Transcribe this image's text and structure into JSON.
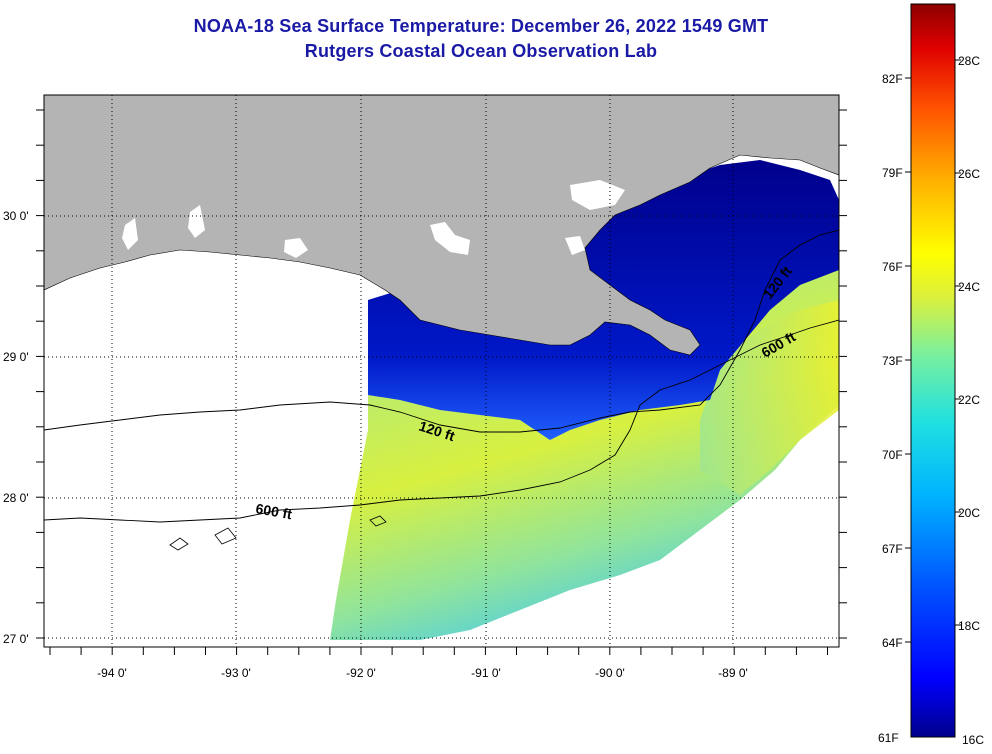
{
  "title": {
    "line1": "NOAA-18 Sea Surface Temperature:  December 26, 2022 1549 GMT",
    "line2": "Rutgers Coastal Ocean Observation Lab"
  },
  "map": {
    "lat_labels": [
      "30 0'",
      "29 0'",
      "28 0'",
      "27 0'"
    ],
    "lon_labels": [
      "-94 0'",
      "-93 0'",
      "-92 0'",
      "-91 0'",
      "-90 0'",
      "-89 0'"
    ],
    "contours": [
      {
        "label": "120 ft",
        "depth_ft": 120
      },
      {
        "label": "600 ft",
        "depth_ft": 600
      },
      {
        "label": "120 ft",
        "depth_ft": 120
      },
      {
        "label": "600 ft",
        "depth_ft": 600
      }
    ],
    "colors": {
      "land": "#b4b4b4",
      "no_data": "#ffffff",
      "cold": "#00008c",
      "mid": "#3cd2c8",
      "warm": "#dcf03c"
    }
  },
  "colorbar": {
    "fahrenheit": [
      "82F",
      "79F",
      "76F",
      "73F",
      "70F",
      "67F",
      "64F",
      "61F"
    ],
    "celsius": [
      "28C",
      "26C",
      "24C",
      "22C",
      "20C",
      "18C",
      "16C"
    ],
    "range_c": [
      16,
      29.5
    ]
  }
}
